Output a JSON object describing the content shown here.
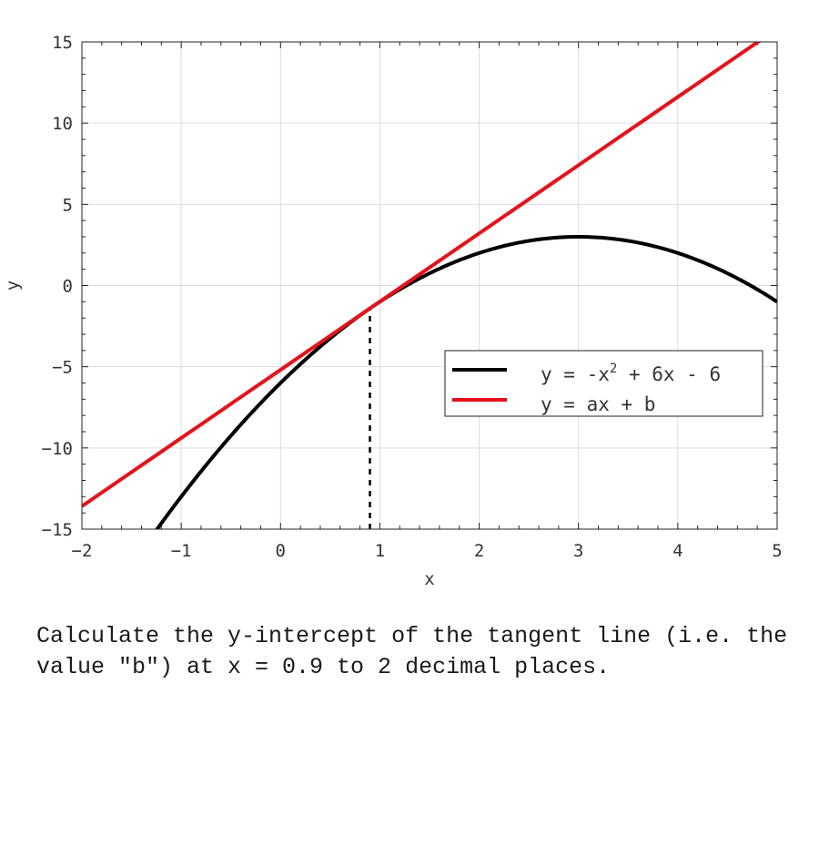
{
  "chart_data": {
    "type": "line",
    "xlabel": "x",
    "ylabel": "y",
    "xlim": [
      -2,
      5
    ],
    "ylim": [
      -15,
      15
    ],
    "xticks": [
      -2,
      -1,
      0,
      1,
      2,
      3,
      4,
      5
    ],
    "yticks": [
      -15,
      -10,
      -5,
      0,
      5,
      10,
      15
    ],
    "grid": true,
    "legend_position": "center-right",
    "curve": {
      "a2": -1,
      "a1": 6,
      "a0": -6
    },
    "tangent_at_x": 0.9,
    "series": [
      {
        "name": "y = -x^2 + 6x - 6",
        "legend_main": "y = -x",
        "legend_sup": "2",
        "legend_tail": " + 6x - 6",
        "color": "#000000"
      },
      {
        "name": "y = ax + b",
        "legend_main": "y = ax + b",
        "color": "#e8111a"
      }
    ],
    "guide_line": {
      "x": 0.9,
      "style": "dashed",
      "color": "#000000"
    }
  },
  "question": "Calculate the y-intercept of the tangent line (i.e. the value \"b\") at x = 0.9 to 2 decimal places."
}
